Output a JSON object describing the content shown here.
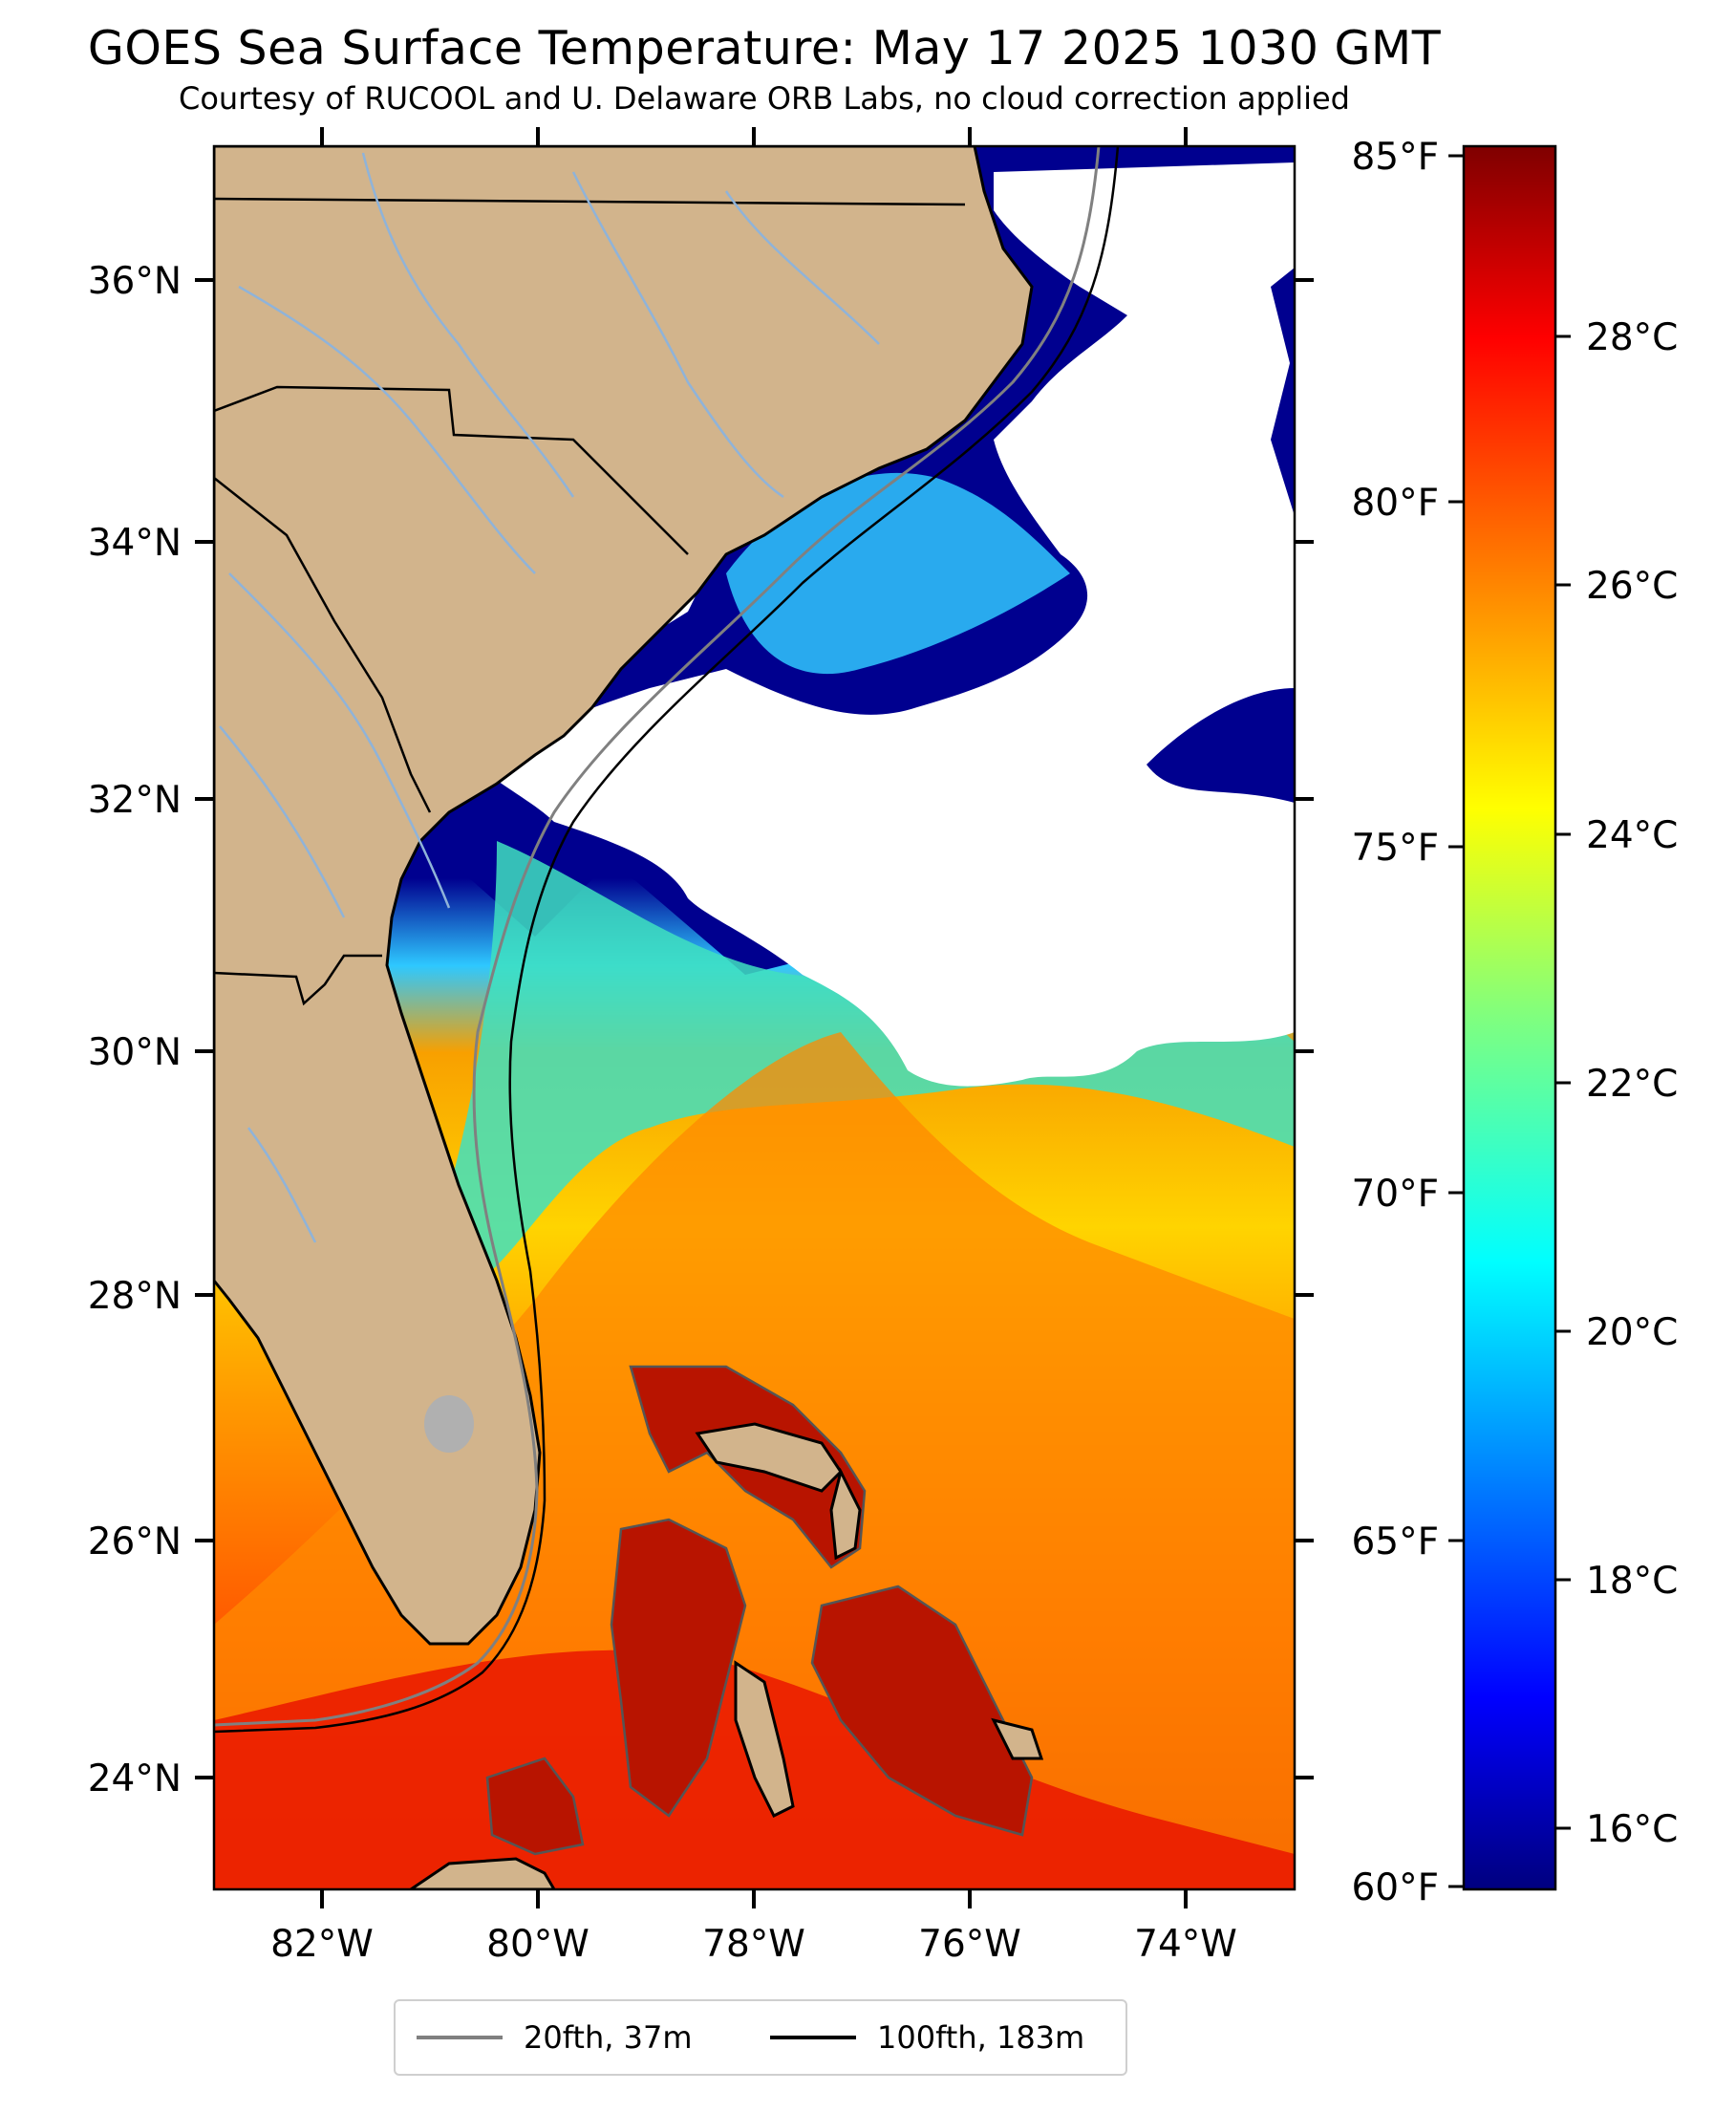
{
  "title": "GOES Sea Surface Temperature: May 17 2025 1030 GMT",
  "subtitle": "Courtesy of RUCOOL and U. Delaware ORB Labs, no cloud correction applied",
  "map": {
    "lon_range": [
      -83.0,
      -73.0
    ],
    "lat_range": [
      23.0,
      37.0
    ],
    "lat_ticks": [
      "36°N",
      "34°N",
      "32°N",
      "30°N",
      "28°N",
      "26°N",
      "24°N"
    ],
    "lon_ticks": [
      "82°W",
      "80°W",
      "78°W",
      "76°W",
      "74°W"
    ],
    "colors": {
      "land": "#d2b48c",
      "cloud": "#ffffff",
      "coast": "#000000",
      "rivers": "#8fb3d9",
      "isobath_20fth": "#808080",
      "isobath_100fth": "#000000"
    }
  },
  "colorbar": {
    "celsius_ticks": [
      "28°C",
      "26°C",
      "24°C",
      "22°C",
      "20°C",
      "18°C",
      "16°C"
    ],
    "fahrenheit_ticks": [
      "85°F",
      "80°F",
      "75°F",
      "70°F",
      "65°F",
      "60°F"
    ],
    "colormap": "jet",
    "range_c": [
      15.56,
      29.44
    ],
    "range_f": [
      60,
      85
    ]
  },
  "legend": [
    {
      "label": "20fth, 37m",
      "color": "#808080"
    },
    {
      "label": "100fth, 183m",
      "color": "#000000"
    }
  ]
}
